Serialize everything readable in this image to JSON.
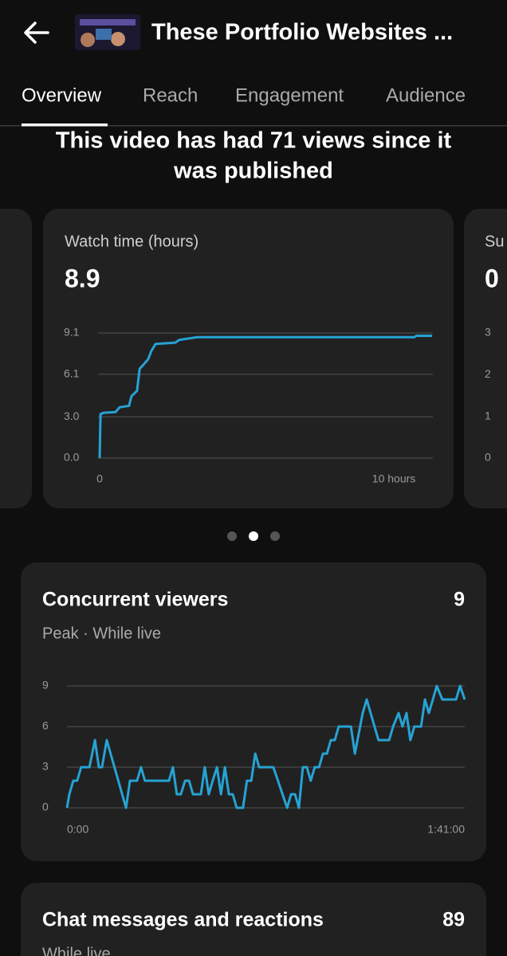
{
  "header": {
    "title": "These Portfolio Websites ..."
  },
  "tabs": [
    "Overview",
    "Reach",
    "Engagement",
    "Audience"
  ],
  "headline": [
    "This video has had 71 views since it",
    "was published"
  ],
  "chart_data": [
    {
      "type": "line",
      "title": "Watch time (hours)",
      "summary_value": 8.9,
      "color": "#26a3d4",
      "grid": true,
      "x": [
        0,
        0.03,
        0.14,
        0.54,
        0.68,
        1.0,
        1.08,
        1.27,
        1.36,
        1.49,
        1.65,
        1.76,
        1.9,
        2.57,
        2.71,
        3.33,
        10.7,
        10.76,
        11.3
      ],
      "values": [
        0,
        3.2,
        3.3,
        3.35,
        3.7,
        3.8,
        4.5,
        4.9,
        6.5,
        6.8,
        7.2,
        7.8,
        8.3,
        8.4,
        8.6,
        8.8,
        8.8,
        8.9,
        8.9
      ],
      "xlim": [
        0,
        11.3
      ],
      "xticks": [
        0,
        {
          "value": 10,
          "label": "10 hours"
        }
      ],
      "ylim": [
        0,
        9.1
      ],
      "yticks": [
        {
          "value": 0,
          "label": "0.0"
        },
        {
          "value": 3,
          "label": "3.0"
        },
        6.1,
        9.1
      ]
    },
    {
      "type": "line",
      "title": "Su",
      "summary_value": 0,
      "color": "#26a3d4",
      "grid": false,
      "ylim": [
        0,
        3
      ],
      "yticks": [
        0,
        1,
        2,
        3
      ]
    },
    {
      "type": "line",
      "title": "Concurrent viewers",
      "subtitle": "Peak · While live",
      "summary_value": 9,
      "color": "#26a3d4",
      "grid": true,
      "x": [
        0,
        0.6,
        1.6,
        2.6,
        3.6,
        5.7,
        7.1,
        8.1,
        8.9,
        10.1,
        15.0,
        16.0,
        17.8,
        18.8,
        19.8,
        25.9,
        26.9,
        27.9,
        28.9,
        30.0,
        31.0,
        32.0,
        34.0,
        35.0,
        36.0,
        37.0,
        38.1,
        39.1,
        40.1,
        41.1,
        42.1,
        43.1,
        44.7,
        45.7,
        46.8,
        47.8,
        48.8,
        52.4,
        55.9,
        56.9,
        57.9,
        58.9,
        59.9,
        60.9,
        61.9,
        62.9,
        64.0,
        65.0,
        66.0,
        67.0,
        68.0,
        69.0,
        72.1,
        73.1,
        75.1,
        76.1,
        77.1,
        79.1,
        81.8,
        82.8,
        84.2,
        85.2,
        86.2,
        87.2,
        88.2,
        89.9,
        90.9,
        91.9,
        92.9,
        93.9,
        95.3,
        98.8,
        99.8,
        101.0
      ],
      "values": [
        0,
        1,
        2,
        2,
        3,
        3,
        5,
        3,
        3,
        5,
        0,
        2,
        2,
        3,
        2,
        2,
        3,
        1,
        1,
        2,
        2,
        1,
        1,
        3,
        1,
        2,
        3,
        1,
        3,
        1,
        1,
        0,
        0,
        2,
        2,
        4,
        3,
        3,
        0,
        1,
        1,
        0,
        3,
        3,
        2,
        3,
        3,
        4,
        4,
        5,
        5,
        6,
        6,
        4,
        7,
        8,
        7,
        5,
        5,
        6,
        7,
        6,
        7,
        5,
        6,
        6,
        8,
        7,
        8,
        9,
        8,
        8,
        9,
        8
      ],
      "xlim": [
        0,
        101
      ],
      "xticks": [
        {
          "value": 0,
          "label": "0:00"
        },
        {
          "value": 101,
          "label": "1:41:00"
        }
      ],
      "ylim": [
        0,
        9
      ],
      "yticks": [
        0,
        3,
        6,
        9
      ]
    }
  ],
  "chat_card": {
    "title": "Chat messages and reactions",
    "summary_value": 89,
    "subtitle": "While live"
  }
}
